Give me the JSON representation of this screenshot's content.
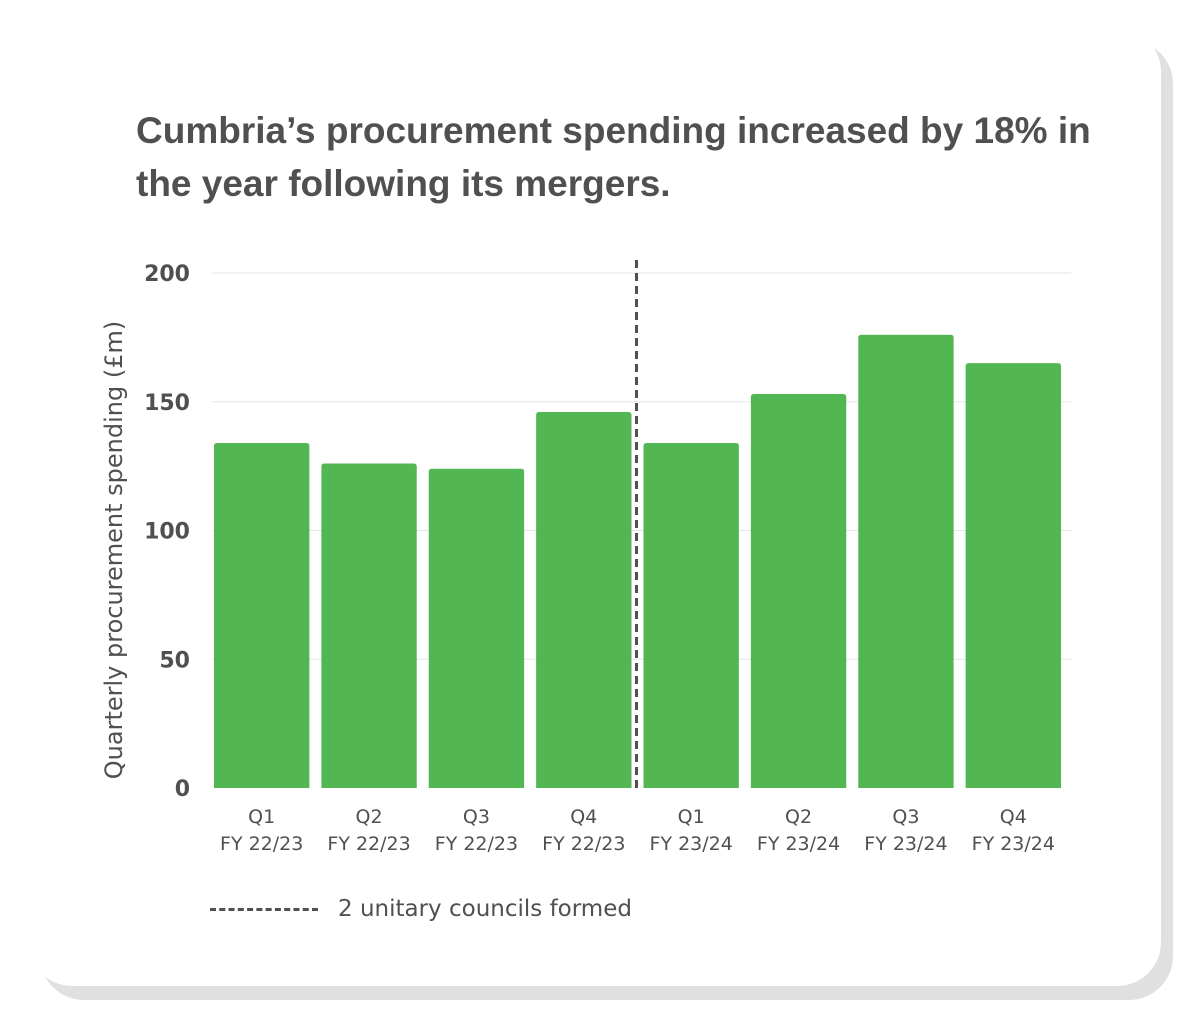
{
  "title": "Cumbria’s procurement spending increased by 18% in the year following its mergers.",
  "colors": {
    "bar": "#52b752",
    "text": "#505050",
    "grid": "#e6e6e6",
    "divider": "#505050"
  },
  "chart_data": {
    "type": "bar",
    "title": "Cumbria’s procurement spending increased by 18% in the year following its mergers.",
    "ylabel": "Quarterly procurement spending (£m)",
    "xlabel": "",
    "ylim": [
      0,
      200
    ],
    "yticks": [
      0,
      50,
      100,
      150,
      200
    ],
    "grid": true,
    "categories": [
      [
        "Q1",
        "FY 22/23"
      ],
      [
        "Q2",
        "FY 22/23"
      ],
      [
        "Q3",
        "FY 22/23"
      ],
      [
        "Q4",
        "FY 22/23"
      ],
      [
        "Q1",
        "FY 23/24"
      ],
      [
        "Q2",
        "FY 23/24"
      ],
      [
        "Q3",
        "FY 23/24"
      ],
      [
        "Q4",
        "FY 23/24"
      ]
    ],
    "values": [
      134,
      126,
      124,
      146,
      134,
      153,
      176,
      165
    ],
    "annotation": {
      "type": "vertical-dashed-line",
      "between": [
        "Q4 FY 22/23",
        "Q1 FY 23/24"
      ],
      "label": "2 unitary councils formed"
    },
    "legend_position": "bottom-left"
  }
}
